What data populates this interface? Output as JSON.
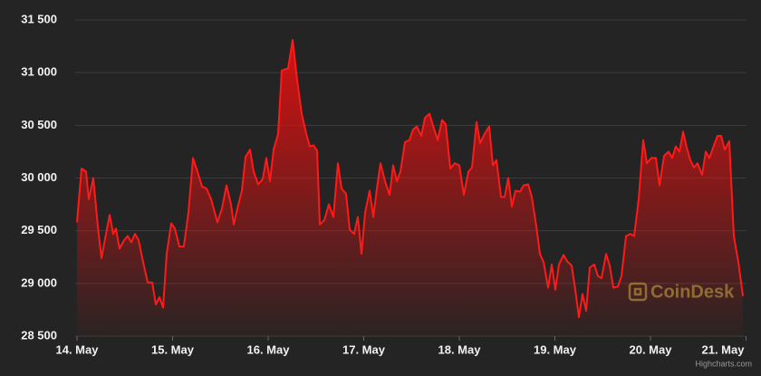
{
  "chart_data": {
    "type": "area",
    "x": [
      0,
      0.047,
      0.095,
      0.123,
      0.171,
      0.218,
      0.256,
      0.303,
      0.341,
      0.379,
      0.408,
      0.445,
      0.493,
      0.531,
      0.569,
      0.607,
      0.645,
      0.682,
      0.739,
      0.787,
      0.825,
      0.863,
      0.9,
      0.938,
      0.986,
      1.024,
      1.071,
      1.118,
      1.166,
      1.213,
      1.261,
      1.308,
      1.355,
      1.403,
      1.469,
      1.517,
      1.564,
      1.611,
      1.64,
      1.678,
      1.725,
      1.763,
      1.81,
      1.848,
      1.896,
      1.943,
      1.981,
      2.019,
      2.057,
      2.104,
      2.142,
      2.209,
      2.256,
      2.303,
      2.351,
      2.398,
      2.436,
      2.474,
      2.512,
      2.54,
      2.588,
      2.635,
      2.682,
      2.73,
      2.768,
      2.815,
      2.853,
      2.9,
      2.938,
      2.976,
      3.014,
      3.062,
      3.1,
      3.137,
      3.175,
      3.223,
      3.27,
      3.308,
      3.346,
      3.384,
      3.431,
      3.479,
      3.517,
      3.555,
      3.602,
      3.64,
      3.687,
      3.735,
      3.773,
      3.82,
      3.858,
      3.905,
      3.953,
      4.0,
      4.047,
      4.095,
      4.133,
      4.18,
      4.218,
      4.265,
      4.313,
      4.351,
      4.389,
      4.436,
      4.474,
      4.512,
      4.55,
      4.588,
      4.635,
      4.673,
      4.72,
      4.758,
      4.806,
      4.844,
      4.882,
      4.929,
      4.967,
      5.005,
      5.043,
      5.09,
      5.128,
      5.175,
      5.213,
      5.251,
      5.289,
      5.327,
      5.365,
      5.412,
      5.45,
      5.488,
      5.536,
      5.573,
      5.611,
      5.659,
      5.697,
      5.744,
      5.791,
      5.829,
      5.877,
      5.924,
      5.962,
      6.009,
      6.057,
      6.095,
      6.142,
      6.19,
      6.227,
      6.265,
      6.303,
      6.341,
      6.379,
      6.417,
      6.455,
      6.493,
      6.54,
      6.578,
      6.616,
      6.664,
      6.701,
      6.739,
      6.777,
      6.825,
      6.872,
      6.919,
      6.967
    ],
    "values": [
      29580,
      30090,
      30060,
      29800,
      30000,
      29540,
      29240,
      29470,
      29650,
      29470,
      29520,
      29330,
      29410,
      29450,
      29390,
      29470,
      29410,
      29240,
      29010,
      29010,
      28800,
      28870,
      28770,
      29280,
      29570,
      29520,
      29350,
      29350,
      29670,
      30190,
      30060,
      29920,
      29900,
      29800,
      29580,
      29710,
      29930,
      29750,
      29560,
      29710,
      29880,
      30200,
      30270,
      30060,
      29940,
      29990,
      30190,
      29970,
      30270,
      30420,
      31020,
      31040,
      31310,
      30930,
      30610,
      30420,
      30300,
      30310,
      30260,
      29560,
      29600,
      29750,
      29630,
      30140,
      29900,
      29850,
      29510,
      29470,
      29630,
      29280,
      29670,
      29880,
      29630,
      29900,
      30140,
      29970,
      29840,
      30120,
      29970,
      30060,
      30340,
      30360,
      30460,
      30490,
      30400,
      30570,
      30610,
      30470,
      30360,
      30550,
      30510,
      30090,
      30140,
      30120,
      29840,
      30060,
      30100,
      30530,
      30330,
      30420,
      30490,
      30120,
      30170,
      29820,
      29820,
      30000,
      29730,
      29880,
      29870,
      29930,
      29940,
      29820,
      29540,
      29280,
      29200,
      28960,
      29180,
      28940,
      29180,
      29270,
      29210,
      29170,
      28940,
      28680,
      28900,
      28740,
      29150,
      29180,
      29070,
      29050,
      29280,
      29170,
      28960,
      28970,
      29070,
      29450,
      29470,
      29450,
      29800,
      30360,
      30140,
      30190,
      30190,
      29930,
      30210,
      30250,
      30190,
      30300,
      30250,
      30440,
      30290,
      30170,
      30100,
      30140,
      30030,
      30250,
      30190,
      30310,
      30400,
      30400,
      30270,
      30350,
      29450,
      29200,
      28880
    ],
    "color": "#ff1a1a",
    "xlim": [
      0,
      7
    ],
    "xticks": [
      {
        "value": 0,
        "label": "14. May"
      },
      {
        "value": 1,
        "label": "15. May"
      },
      {
        "value": 2,
        "label": "16. May"
      },
      {
        "value": 3,
        "label": "17. May"
      },
      {
        "value": 4,
        "label": "18. May"
      },
      {
        "value": 5,
        "label": "19. May"
      },
      {
        "value": 6,
        "label": "20. May"
      },
      {
        "value": 7,
        "label": "21. May"
      }
    ],
    "ylim": [
      28500,
      31500
    ],
    "yticks": [
      {
        "value": 28500,
        "label": "28 500"
      },
      {
        "value": 29000,
        "label": "29 000"
      },
      {
        "value": 29500,
        "label": "29 500"
      },
      {
        "value": 30000,
        "label": "30 000"
      },
      {
        "value": 30500,
        "label": "30 500"
      },
      {
        "value": 31000,
        "label": "31 000"
      },
      {
        "value": 31500,
        "label": "31 500"
      }
    ],
    "grid": true,
    "watermark": "CoinDesk",
    "credits": "Highcharts.com"
  }
}
